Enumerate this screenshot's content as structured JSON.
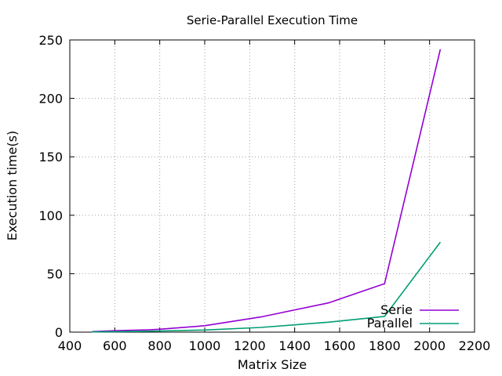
{
  "chart_data": {
    "type": "line",
    "title": "Serie-Parallel Execution Time",
    "xlabel": "Matrix Size",
    "ylabel": "Execution time(s)",
    "xlim": [
      400,
      2200
    ],
    "ylim": [
      0,
      250
    ],
    "x_ticks": [
      400,
      600,
      800,
      1000,
      1200,
      1400,
      1600,
      1800,
      2000,
      2200
    ],
    "y_ticks": [
      0,
      50,
      100,
      150,
      200,
      250
    ],
    "grid": true,
    "legend_position": "bottom-right",
    "series": [
      {
        "name": "Serie",
        "color": "#9400d3",
        "x": [
          500,
          600,
          750,
          800,
          1000,
          1250,
          1550,
          1800,
          2048
        ],
        "y": [
          0.5,
          1.2,
          2.0,
          2.5,
          5.5,
          13,
          25,
          41.5,
          242
        ]
      },
      {
        "name": "Parallel",
        "color": "#009e73",
        "x": [
          500,
          600,
          750,
          800,
          1000,
          1250,
          1550,
          1800,
          2048
        ],
        "y": [
          0.2,
          0.4,
          0.8,
          1.0,
          1.8,
          4,
          8.5,
          13.5,
          77
        ]
      }
    ]
  }
}
